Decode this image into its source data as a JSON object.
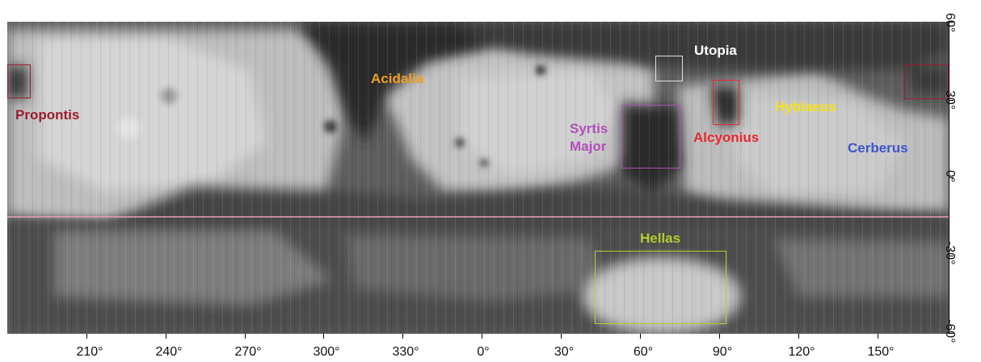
{
  "map": {
    "x_axis_ticks": [
      "210°",
      "240°",
      "270°",
      "300°",
      "330°",
      "0°",
      "30°",
      "60°",
      "90°",
      "120°",
      "150°"
    ],
    "y_axis_ticks": [
      "60°",
      "30°",
      "0°",
      "-30°",
      "-60°"
    ],
    "regions": [
      {
        "key": "propontis",
        "label": "Propontis",
        "color": "#9b1b30"
      },
      {
        "key": "acidalia",
        "label": "Acidalia",
        "color": "#f0a020"
      },
      {
        "key": "utopia",
        "label": "Utopia",
        "color": "#ffffff"
      },
      {
        "key": "syrtis",
        "label_line1": "Syrtis",
        "label_line2": "Major",
        "color": "#b04fb8"
      },
      {
        "key": "alcyonius",
        "label": "Alcyonius",
        "color": "#e8262e"
      },
      {
        "key": "hyblaeus",
        "label": "Hyblaeus",
        "color": "#f4e21a"
      },
      {
        "key": "cerberus",
        "label": "Cerberus",
        "color": "#3d55cc"
      },
      {
        "key": "hellas",
        "label": "Hellas",
        "color": "#b5cc2e"
      }
    ],
    "lines": {
      "latitude_line_color": "#e8a0c0"
    }
  }
}
